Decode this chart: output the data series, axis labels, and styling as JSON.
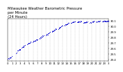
{
  "title": "Milwaukee Weather Barometric Pressure\nper Minute\n(24 Hours)",
  "bg_color": "#ffffff",
  "dot_color": "#0000cc",
  "grid_color": "#aaaaaa",
  "ylim": [
    29.38,
    30.14
  ],
  "yticks": [
    29.4,
    29.5,
    29.6,
    29.7,
    29.8,
    29.9,
    30.0,
    30.1
  ],
  "xlabel_color": "#000000",
  "title_fontsize": 3.8,
  "tick_fontsize": 2.8,
  "vgrid_positions": [
    0,
    60,
    120,
    180,
    240,
    300,
    360,
    420,
    480,
    540,
    600,
    660,
    720,
    780,
    840,
    900,
    960,
    1020,
    1080,
    1140,
    1200,
    1260,
    1320,
    1380,
    1440
  ],
  "xtick_labels": [
    "0",
    "1",
    "2",
    "3",
    "4",
    "5",
    "6",
    "7",
    "8",
    "9",
    "10",
    "11",
    "12",
    "13",
    "14",
    "15",
    "16",
    "17",
    "18",
    "19",
    "20",
    "21",
    "22",
    "23",
    "3"
  ],
  "xlim": [
    0,
    1440
  ],
  "pressure_segments": [
    {
      "x_start": 0,
      "x_end": 30,
      "y_start": 29.42,
      "y_end": 29.44,
      "scatter": 0.008
    },
    {
      "x_start": 30,
      "x_end": 60,
      "y_start": 29.43,
      "y_end": 29.46,
      "scatter": 0.008
    },
    {
      "x_start": 120,
      "x_end": 180,
      "y_start": 29.53,
      "y_end": 29.6,
      "scatter": 0.008
    },
    {
      "x_start": 200,
      "x_end": 240,
      "y_start": 29.62,
      "y_end": 29.66,
      "scatter": 0.008
    },
    {
      "x_start": 270,
      "x_end": 330,
      "y_start": 29.67,
      "y_end": 29.72,
      "scatter": 0.006
    },
    {
      "x_start": 360,
      "x_end": 420,
      "y_start": 29.72,
      "y_end": 29.77,
      "scatter": 0.006
    },
    {
      "x_start": 450,
      "x_end": 510,
      "y_start": 29.78,
      "y_end": 29.84,
      "scatter": 0.006
    },
    {
      "x_start": 540,
      "x_end": 600,
      "y_start": 29.84,
      "y_end": 29.9,
      "scatter": 0.006
    },
    {
      "x_start": 630,
      "x_end": 690,
      "y_start": 29.9,
      "y_end": 29.96,
      "scatter": 0.005
    },
    {
      "x_start": 720,
      "x_end": 780,
      "y_start": 29.96,
      "y_end": 30.02,
      "scatter": 0.005
    },
    {
      "x_start": 810,
      "x_end": 870,
      "y_start": 30.02,
      "y_end": 30.06,
      "scatter": 0.005
    },
    {
      "x_start": 900,
      "x_end": 960,
      "y_start": 30.06,
      "y_end": 30.09,
      "scatter": 0.005
    },
    {
      "x_start": 990,
      "x_end": 1050,
      "y_start": 30.08,
      "y_end": 30.09,
      "scatter": 0.005
    },
    {
      "x_start": 1080,
      "x_end": 1140,
      "y_start": 30.07,
      "y_end": 30.08,
      "scatter": 0.005
    },
    {
      "x_start": 1170,
      "x_end": 1230,
      "y_start": 30.07,
      "y_end": 30.09,
      "scatter": 0.005
    },
    {
      "x_start": 1260,
      "x_end": 1320,
      "y_start": 30.08,
      "y_end": 30.1,
      "scatter": 0.005
    },
    {
      "x_start": 1350,
      "x_end": 1440,
      "y_start": 30.09,
      "y_end": 30.1,
      "scatter": 0.005
    }
  ]
}
